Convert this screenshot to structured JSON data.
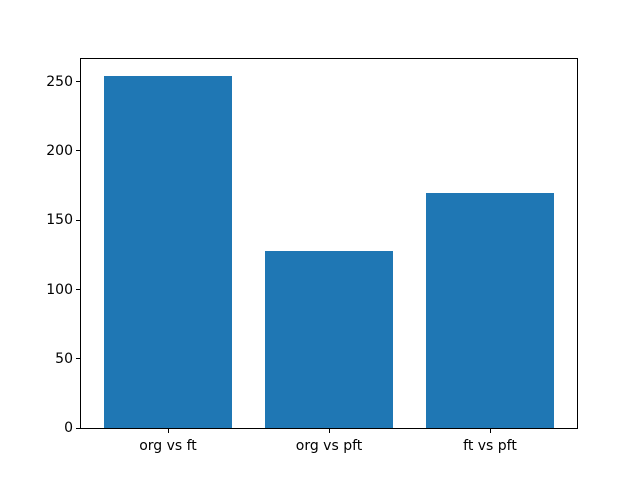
{
  "chart_data": {
    "type": "bar",
    "categories": [
      "org vs ft",
      "org vs pft",
      "ft vs pft"
    ],
    "values": [
      254,
      128,
      170
    ],
    "title": "",
    "xlabel": "",
    "ylabel": "",
    "yticks": [
      0,
      50,
      100,
      150,
      200,
      250
    ],
    "ylim": [
      0,
      266.7
    ],
    "bar_color": "#1f77b4",
    "axes_edge_color": "#000000",
    "background_color": "#ffffff",
    "grid": "off",
    "legend": "none",
    "bar_width_fraction": 0.8
  }
}
